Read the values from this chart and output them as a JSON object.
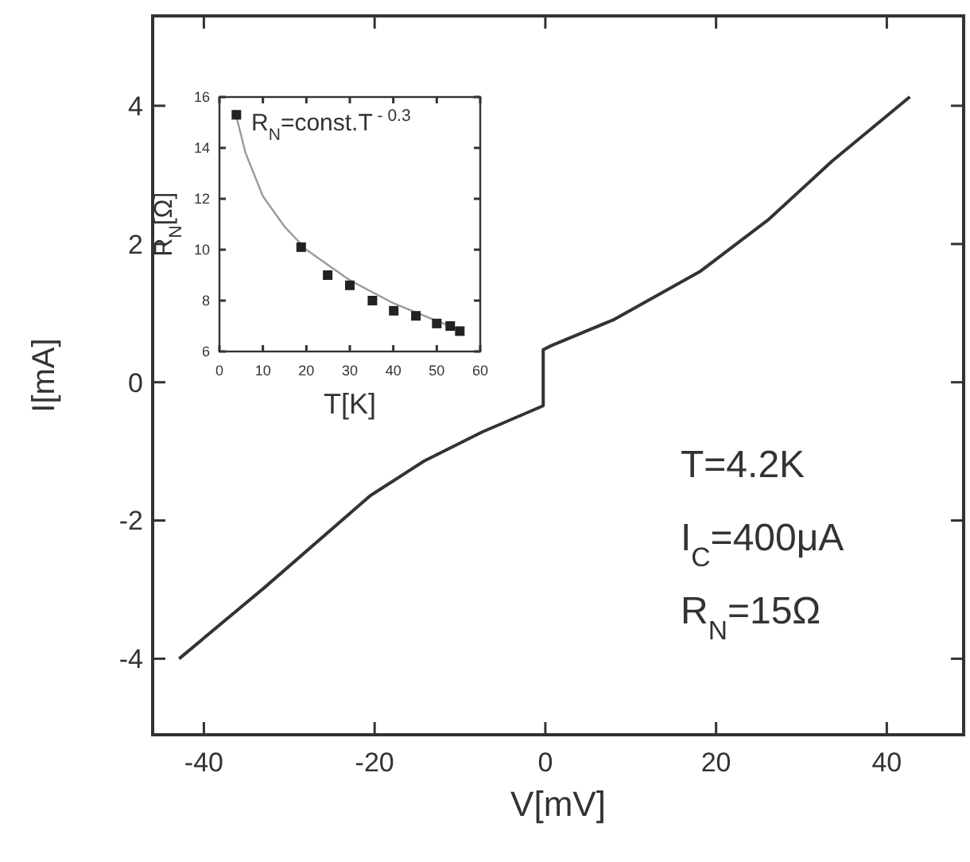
{
  "chart_data": [
    {
      "type": "line",
      "xlabel": "V[mV]",
      "ylabel": "I[mA]",
      "xlim": [
        -46,
        49
      ],
      "ylim": [
        -5.1,
        5.3
      ],
      "xticks": [
        -40,
        -20,
        0,
        20,
        40
      ],
      "yticks": [
        -4,
        -2,
        0,
        2,
        4
      ],
      "grid": false,
      "series": [
        {
          "color": "#333333",
          "x": [
            -42.9,
            -32.9,
            -20.5,
            -14.2,
            -7.4,
            -0.25,
            -0.25,
            0.7,
            8.1,
            18.1,
            26.2,
            33.6,
            42.7
          ],
          "values": [
            -4.0,
            -2.97,
            -1.64,
            -1.14,
            -0.72,
            -0.34,
            0.47,
            0.53,
            0.91,
            1.6,
            2.36,
            3.2,
            4.13
          ]
        }
      ],
      "annotations": [
        "T=4.2K",
        "I$_{C}$=400μA",
        "R$_{N}$=15Ω"
      ]
    },
    {
      "type": "scatter",
      "xlabel": "T[K]",
      "ylabel": "R$_{N}$[Ω]",
      "xlim": [
        0,
        60
      ],
      "ylim": [
        6,
        16
      ],
      "xticks": [
        0,
        10,
        20,
        30,
        40,
        50,
        60
      ],
      "yticks": [
        6,
        8,
        10,
        12,
        14,
        16
      ],
      "grid": false,
      "series": [
        {
          "type": "line",
          "color": "#9a9a9a",
          "marker": "none",
          "x": [
            3.5,
            6,
            10,
            15,
            20,
            30,
            40,
            50,
            56
          ],
          "values": [
            15.5,
            13.8,
            12.1,
            10.9,
            10.0,
            8.8,
            7.9,
            7.2,
            6.8
          ]
        },
        {
          "color": "#222222",
          "marker": "square",
          "x": [
            3.9,
            18.8,
            24.9,
            30,
            35.2,
            40.1,
            45.2,
            50,
            53.1,
            55.3
          ],
          "values": [
            15.3,
            10.1,
            9.0,
            8.6,
            8.0,
            7.6,
            7.4,
            7.1,
            7.0,
            6.8
          ]
        }
      ],
      "annotations": [
        "R$_{N}$=const.T$^{ - 0.3}$"
      ]
    }
  ]
}
